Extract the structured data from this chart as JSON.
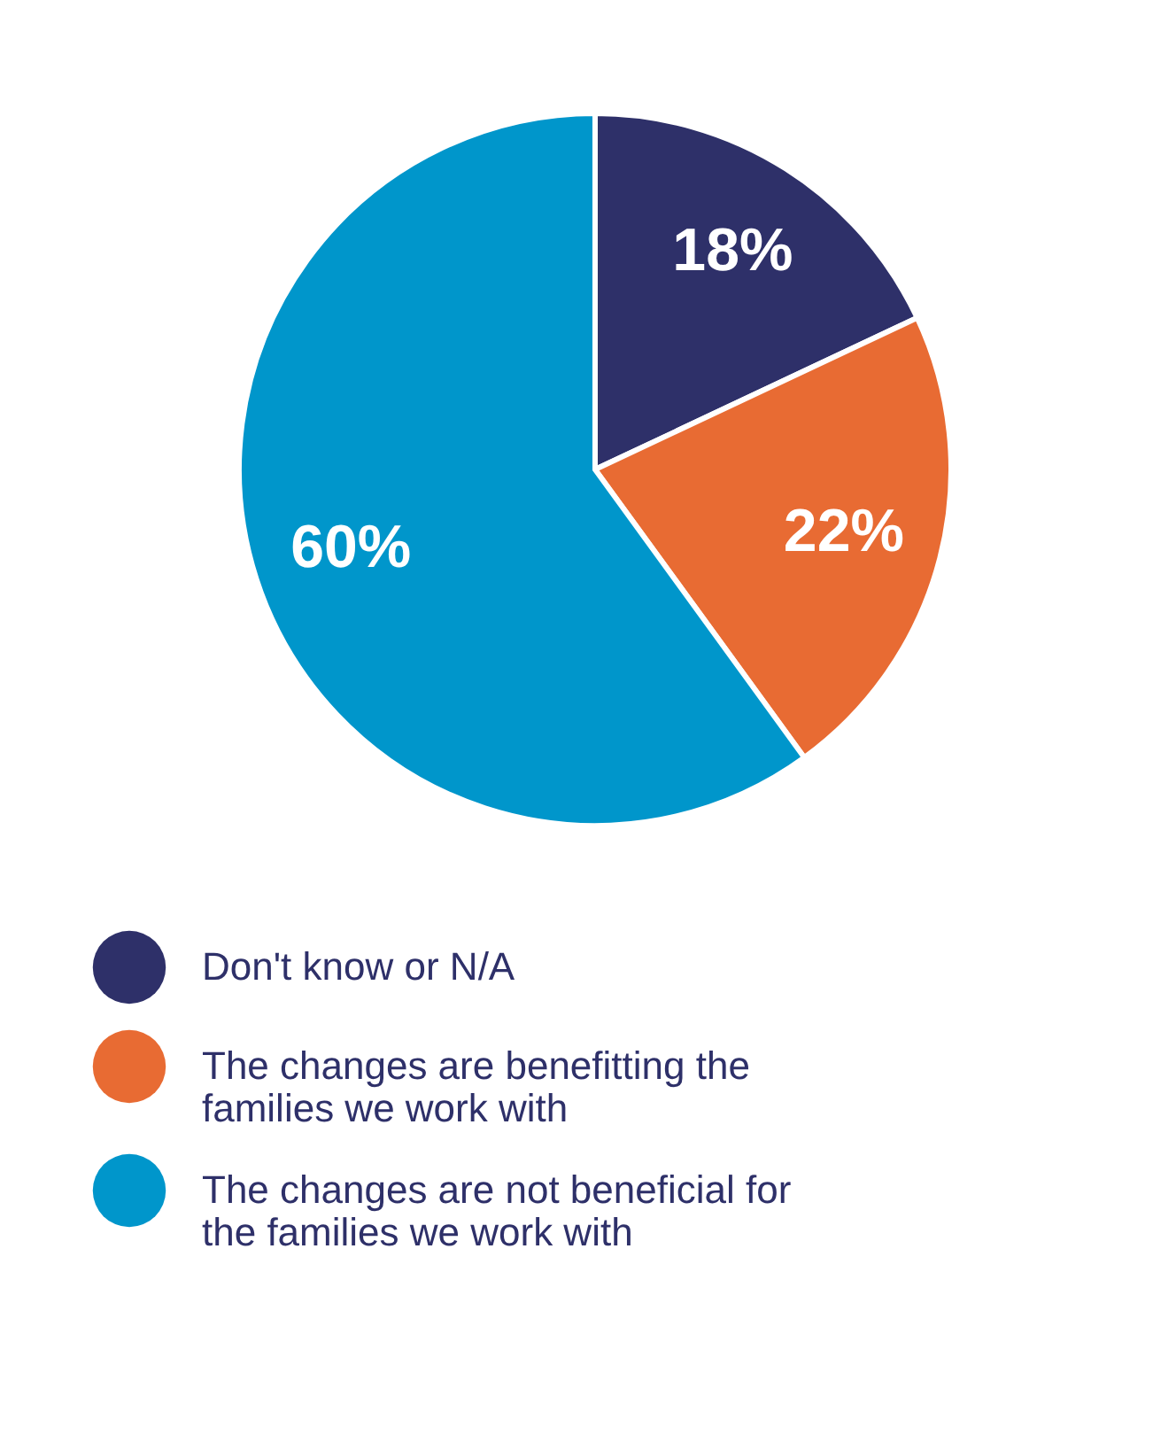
{
  "chart_data": {
    "type": "pie",
    "categories": [
      "Don't know or N/A",
      "The changes are benefitting the families we work with",
      "The changes are not beneficial for the families we work with"
    ],
    "values": [
      18,
      22,
      60
    ],
    "colors": [
      "#2e3069",
      "#e86b33",
      "#0096cb"
    ],
    "value_labels": [
      "18%",
      "22%",
      "60%"
    ],
    "legend": "bottom"
  }
}
